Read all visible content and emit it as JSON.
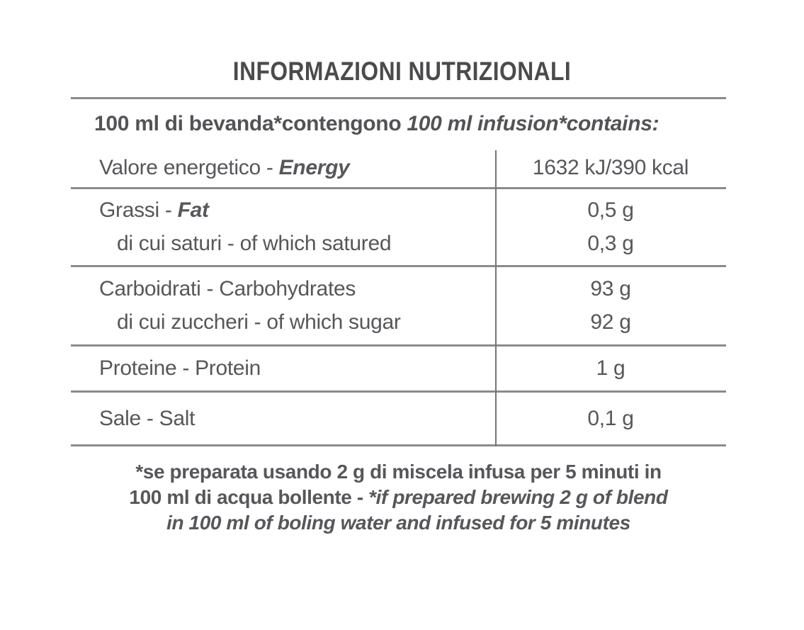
{
  "colors": {
    "background": "#ffffff",
    "text": "#56575a",
    "title_text": "#4b4b4d",
    "rule": "#8b8b8e"
  },
  "title": "INFORMAZIONI NUTRIZIONALI",
  "serving": {
    "it": "100 ml di bevanda*contengono ",
    "en": "100 ml infusion*contains:"
  },
  "table": {
    "rows": [
      {
        "lines": [
          {
            "it": "Valore energetico - ",
            "en": "Energy",
            "value": "1632 kJ/390 kcal"
          }
        ]
      },
      {
        "lines": [
          {
            "it": "Grassi - ",
            "en": "Fat",
            "value": "0,5 g"
          },
          {
            "it": "di cui saturi - of which satured",
            "en": "",
            "value": "0,3 g"
          }
        ]
      },
      {
        "lines": [
          {
            "it": "Carboidrati - Carbohydrates",
            "en": "",
            "value": "93 g"
          },
          {
            "it": "di cui zuccheri - of which sugar",
            "en": "",
            "value": "92 g"
          }
        ]
      },
      {
        "lines": [
          {
            "it": "Proteine - Protein",
            "en": "",
            "value": "1 g"
          }
        ]
      },
      {
        "lines": [
          {
            "it": "Sale - Salt",
            "en": "",
            "value": "0,1 g"
          }
        ]
      }
    ]
  },
  "footnote": {
    "line1": "*se preparata usando 2 g di miscela infusa per 5 minuti in",
    "line2_it": "100 ml di acqua bollente - ",
    "line2_en": "*if prepared brewing 2 g of blend",
    "line3": "in 100 ml of boling water and infused for 5 minutes"
  }
}
